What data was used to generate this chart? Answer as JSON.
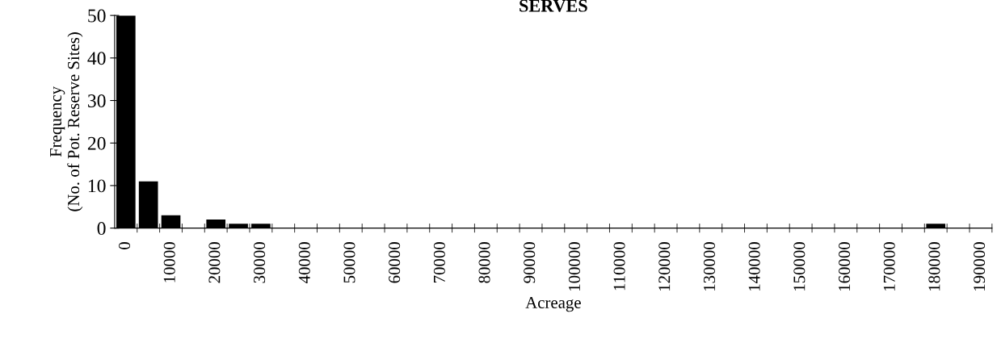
{
  "chart_data": {
    "type": "bar",
    "title": "SERVES",
    "xlabel": "Acreage",
    "ylabel": "Frequency\n(No. of Pot. Reserve Sites)",
    "categories": [
      "0",
      null,
      "10000",
      null,
      "20000",
      null,
      "30000",
      null,
      "40000",
      null,
      "50000",
      null,
      "60000",
      null,
      "70000",
      null,
      "80000",
      null,
      "90000",
      null,
      "100000",
      null,
      "110000",
      null,
      "120000",
      null,
      "130000",
      null,
      "140000",
      null,
      "150000",
      null,
      "160000",
      null,
      "170000",
      null,
      "180000",
      null,
      "190000"
    ],
    "values": [
      50,
      11,
      3,
      0,
      2,
      1,
      1,
      0,
      0,
      0,
      0,
      0,
      0,
      0,
      0,
      0,
      0,
      0,
      0,
      0,
      0,
      0,
      0,
      0,
      0,
      0,
      0,
      0,
      0,
      0,
      0,
      0,
      0,
      0,
      0,
      0,
      1,
      0,
      0
    ],
    "color": "#000000",
    "ylim": [
      0,
      50
    ],
    "yticks": [
      0,
      10,
      20,
      30,
      40,
      50
    ],
    "grid": false
  }
}
